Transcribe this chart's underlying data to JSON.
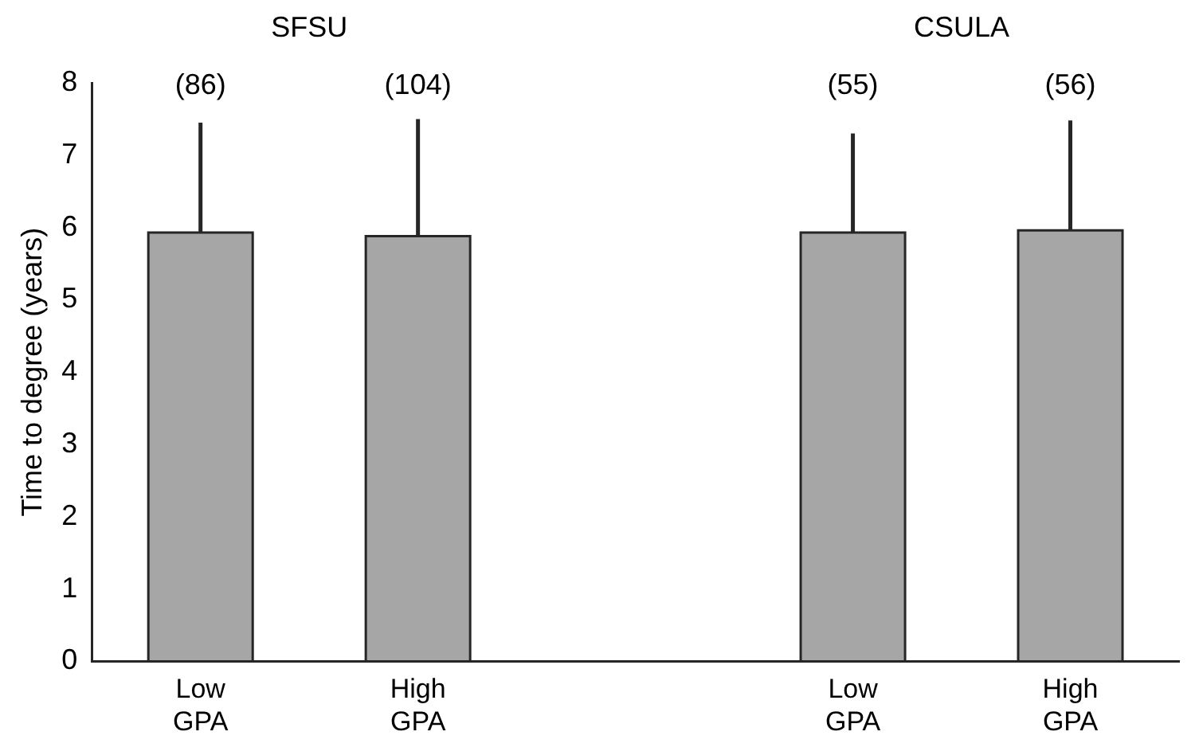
{
  "chart_data": {
    "type": "bar",
    "ylabel": "Time to degree (years)",
    "categories": [
      "Low GPA",
      "High GPA",
      null,
      "Low GPA",
      "High GPA"
    ],
    "values": [
      5.93,
      5.88,
      null,
      5.93,
      5.96
    ],
    "errors": [
      [
        5.93,
        7.45
      ],
      [
        5.88,
        7.5
      ],
      null,
      [
        5.93,
        7.3
      ],
      [
        5.96,
        7.48
      ]
    ],
    "color": "#a6a6a6",
    "ylim": [
      0,
      8
    ],
    "yticks": [
      0,
      1,
      2,
      3,
      4,
      5,
      6,
      7,
      8
    ],
    "grid": false,
    "legend": false,
    "annotations": [
      "SFSU",
      "CSULA",
      "(86)",
      "(104)",
      "(55)",
      "(56)"
    ]
  }
}
